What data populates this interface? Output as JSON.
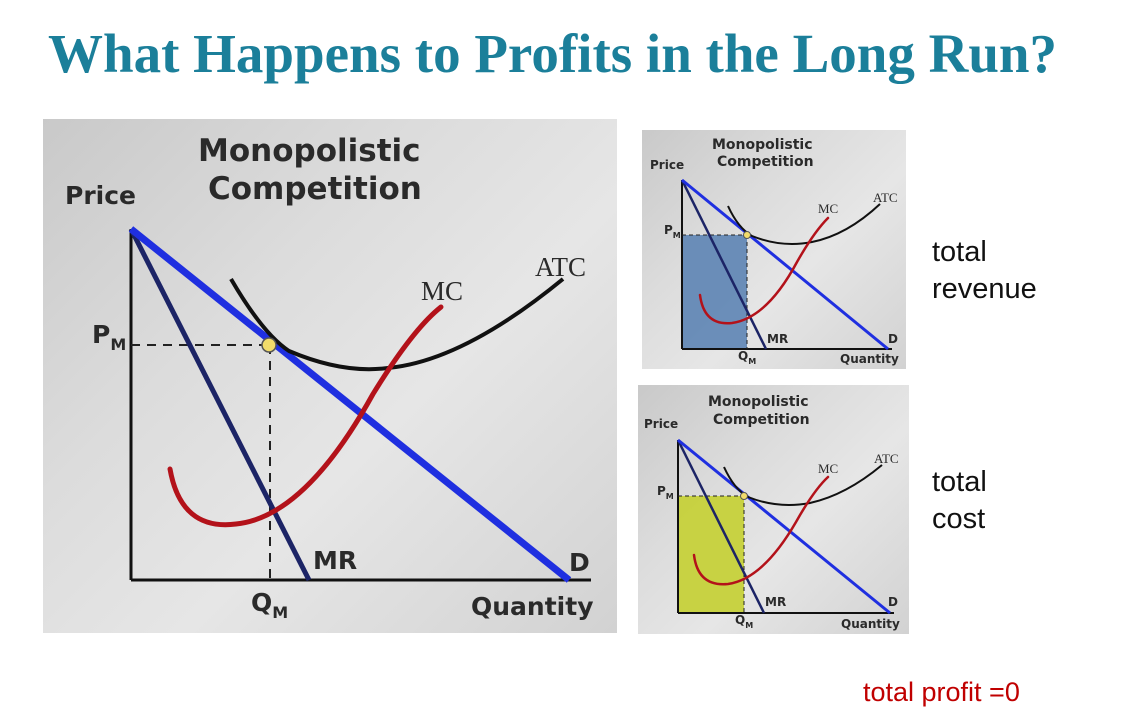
{
  "slide": {
    "title": "What Happens to Profits in the Long Run?"
  },
  "diagram": {
    "title_line1": "Monopolistic",
    "title_line2": "Competition",
    "y_axis_label": "Price",
    "x_axis_label": "Quantity",
    "price_label": "P",
    "price_subscript": "M",
    "quantity_label": "Q",
    "quantity_subscript": "M",
    "curves": {
      "demand": "D",
      "marginal_revenue": "MR",
      "marginal_cost": "MC",
      "average_total_cost": "ATC"
    },
    "colors": {
      "demand": "#1f2fe0",
      "marginal_revenue": "#1c2466",
      "marginal_cost": "#b3121a",
      "average_total_cost": "#111111",
      "total_revenue_area": "#5d84b4",
      "total_cost_area": "#c6d13a",
      "tangency_point": "#f2dc6a"
    }
  },
  "labels": {
    "total_revenue_line1": "total",
    "total_revenue_line2": "revenue",
    "total_cost_line1": "total",
    "total_cost_line2": "cost",
    "total_profit": "total profit =0"
  }
}
